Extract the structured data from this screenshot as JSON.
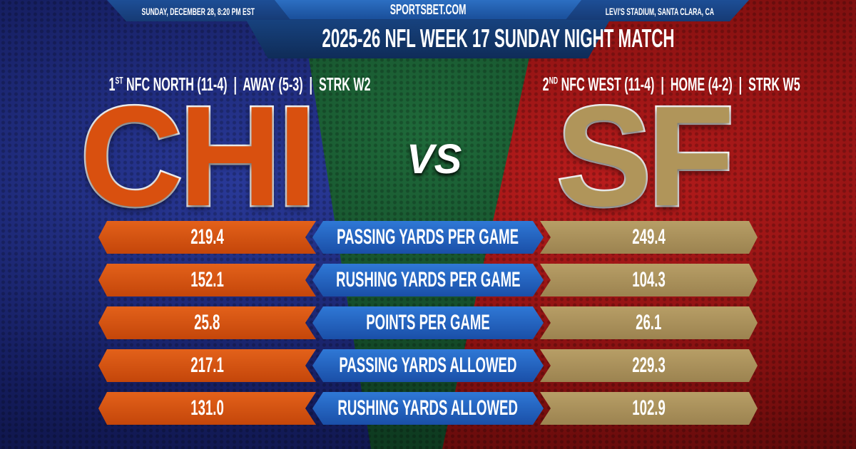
{
  "header": {
    "site": "SPORTSBET.COM",
    "date": "SUNDAY, DECEMBER 28, 8:20 PM EST",
    "venue": "LEVI'S STADIUM, SANTA CLARA, CA",
    "title": "2025-26 NFL WEEK 17 SUNDAY NIGHT MATCH"
  },
  "away": {
    "abbr": "CHI",
    "rank": "1",
    "rank_suffix": "ST",
    "record": "NFC NORTH (11-4)  |  AWAY (5-3)  |  STRK W2",
    "color": "#d9500f"
  },
  "home": {
    "abbr": "SF",
    "rank": "2",
    "rank_suffix": "ND",
    "record": "NFC WEST (11-4)  |  HOME (4-2)  |  STRK W5",
    "color": "#b0955a"
  },
  "vs": "VS",
  "stats": [
    {
      "label": "PASSING YARDS PER GAME",
      "away": "219.4",
      "home": "249.4"
    },
    {
      "label": "RUSHING YARDS PER GAME",
      "away": "152.1",
      "home": "104.3"
    },
    {
      "label": "POINTS PER GAME",
      "away": "25.8",
      "home": "26.1"
    },
    {
      "label": "PASSING YARDS ALLOWED",
      "away": "217.1",
      "home": "229.3"
    },
    {
      "label": "RUSHING YARDS ALLOWED",
      "away": "131.0",
      "home": "102.9"
    }
  ]
}
